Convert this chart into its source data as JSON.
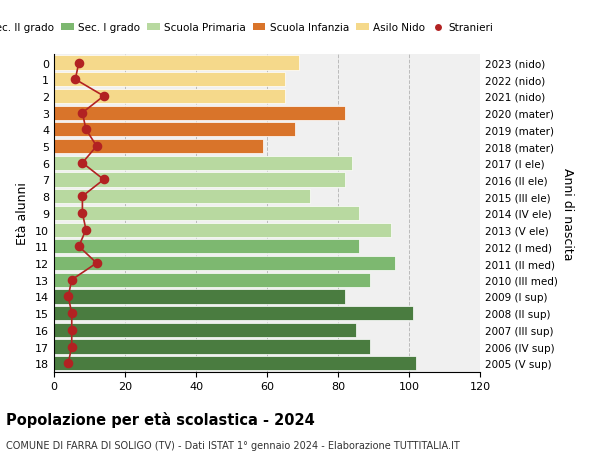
{
  "ages": [
    0,
    1,
    2,
    3,
    4,
    5,
    6,
    7,
    8,
    9,
    10,
    11,
    12,
    13,
    14,
    15,
    16,
    17,
    18
  ],
  "years_by_age": {
    "0": "2023 (nido)",
    "1": "2022 (nido)",
    "2": "2021 (nido)",
    "3": "2020 (mater)",
    "4": "2019 (mater)",
    "5": "2018 (mater)",
    "6": "2017 (I ele)",
    "7": "2016 (II ele)",
    "8": "2015 (III ele)",
    "9": "2014 (IV ele)",
    "10": "2013 (V ele)",
    "11": "2012 (I med)",
    "12": "2011 (II med)",
    "13": "2010 (III med)",
    "14": "2009 (I sup)",
    "15": "2008 (II sup)",
    "16": "2007 (III sup)",
    "17": "2006 (IV sup)",
    "18": "2005 (V sup)"
  },
  "bar_values_by_age": {
    "0": 69,
    "1": 65,
    "2": 65,
    "3": 82,
    "4": 68,
    "5": 59,
    "6": 84,
    "7": 82,
    "8": 72,
    "9": 86,
    "10": 95,
    "11": 86,
    "12": 96,
    "13": 89,
    "14": 82,
    "15": 101,
    "16": 85,
    "17": 89,
    "18": 102
  },
  "bar_colors_by_age": {
    "0": "#f5d98b",
    "1": "#f5d98b",
    "2": "#f5d98b",
    "3": "#d9742a",
    "4": "#d9742a",
    "5": "#d9742a",
    "6": "#b8d9a0",
    "7": "#b8d9a0",
    "8": "#b8d9a0",
    "9": "#b8d9a0",
    "10": "#b8d9a0",
    "11": "#7db870",
    "12": "#7db870",
    "13": "#7db870",
    "14": "#4a7c40",
    "15": "#4a7c40",
    "16": "#4a7c40",
    "17": "#4a7c40",
    "18": "#4a7c40"
  },
  "stranieri_by_age": {
    "0": 7,
    "1": 6,
    "2": 14,
    "3": 8,
    "4": 9,
    "5": 12,
    "6": 8,
    "7": 14,
    "8": 8,
    "9": 8,
    "10": 9,
    "11": 7,
    "12": 12,
    "13": 5,
    "14": 4,
    "15": 5,
    "16": 5,
    "17": 5,
    "18": 4
  },
  "legend_labels": [
    "Sec. II grado",
    "Sec. I grado",
    "Scuola Primaria",
    "Scuola Infanzia",
    "Asilo Nido",
    "Stranieri"
  ],
  "legend_colors": [
    "#4a7c40",
    "#7db870",
    "#b8d9a0",
    "#d9742a",
    "#f5d98b",
    "#b22222"
  ],
  "title": "Popolazione per età scolastica - 2024",
  "subtitle": "COMUNE DI FARRA DI SOLIGO (TV) - Dati ISTAT 1° gennaio 2024 - Elaborazione TUTTITALIA.IT",
  "ylabel_left": "Età alunni",
  "ylabel_right": "Anni di nascita",
  "xlim": [
    0,
    120
  ],
  "xticks": [
    0,
    20,
    40,
    60,
    80,
    100,
    120
  ],
  "bg_color": "#ffffff",
  "bar_bg_color": "#f0f0f0",
  "stranieri_color": "#b22222",
  "stranieri_dot_size": 35
}
